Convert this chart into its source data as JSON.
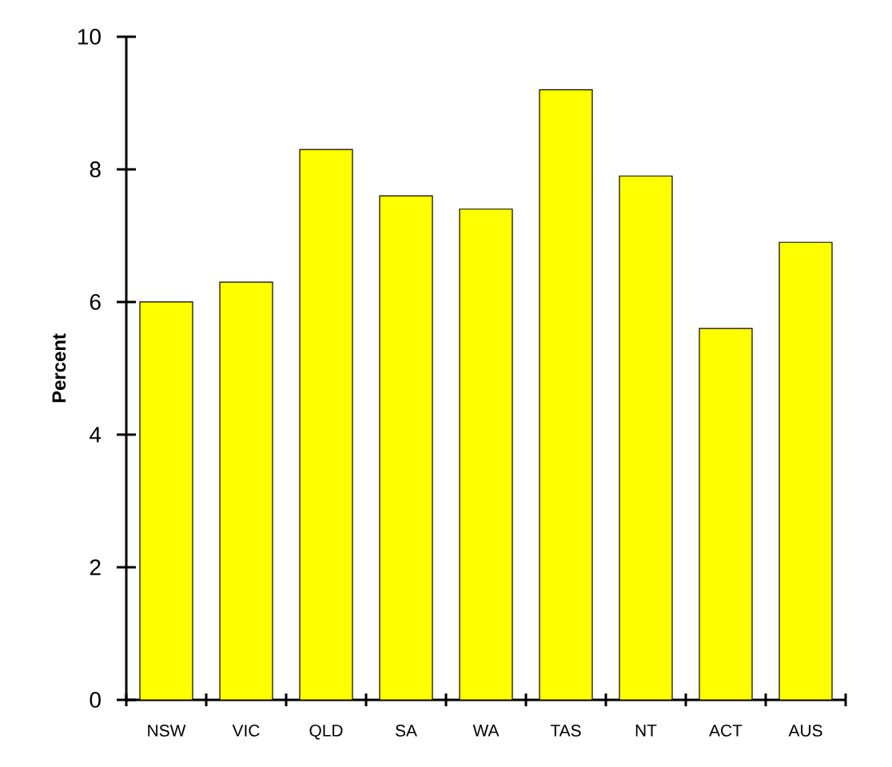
{
  "chart_data": {
    "type": "bar",
    "ylabel": "Percent",
    "categories": [
      "NSW",
      "VIC",
      "QLD",
      "SA",
      "WA",
      "TAS",
      "NT",
      "ACT",
      "AUS"
    ],
    "values": [
      6.0,
      6.3,
      8.3,
      7.6,
      7.4,
      9.2,
      7.9,
      5.6,
      6.9
    ],
    "color": "#ffff00",
    "ylim": [
      0,
      10
    ],
    "yticks": [
      0,
      2,
      4,
      6,
      8,
      10
    ],
    "grid": false
  }
}
